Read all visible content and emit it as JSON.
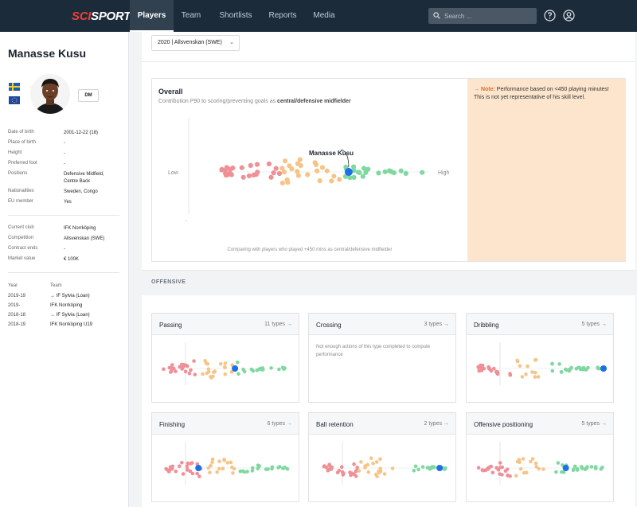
{
  "nav": {
    "logo_part1": "SCI",
    "logo_part2": "SPORTS",
    "items": [
      {
        "label": "Players",
        "active": true
      },
      {
        "label": "Team",
        "active": false
      },
      {
        "label": "Shortlists",
        "active": false
      },
      {
        "label": "Reports",
        "active": false
      },
      {
        "label": "Media",
        "active": false
      }
    ],
    "search_placeholder": "Search ...",
    "icons": [
      "search-icon",
      "help-icon",
      "user-icon"
    ]
  },
  "player": {
    "name": "Manasse Kusu",
    "flags": [
      "sweden-flag",
      "eu-flag"
    ],
    "position_badge": "DM",
    "personal": [
      {
        "label": "Date of birth",
        "value": "2001-12-22 (18)"
      },
      {
        "label": "Place of birth",
        "value": "-"
      },
      {
        "label": "Height",
        "value": "-"
      },
      {
        "label": "Preferred foot",
        "value": "-"
      },
      {
        "label": "Positions",
        "value": "Defensive Midfield, Centre Back"
      },
      {
        "label": "Nationalities",
        "value": "Sweden, Congo"
      },
      {
        "label": "EU member",
        "value": "Yes"
      }
    ],
    "club": [
      {
        "label": "Current club",
        "value": "IFK Norrköping"
      },
      {
        "label": "Competition",
        "value": "Allsvenskan (SWE)"
      },
      {
        "label": "Contract ends",
        "value": "-"
      },
      {
        "label": "Market value",
        "value": "€ 100K"
      }
    ],
    "history_headers": {
      "year": "Year",
      "team": "Team"
    },
    "history": [
      {
        "year": "2019-19",
        "team": "→ IF Sylvia (Loan)"
      },
      {
        "year": "2019-",
        "team": "IFK Norrköping"
      },
      {
        "year": "2018-18",
        "team": "→ IF Sylvia (Loan)"
      },
      {
        "year": "2018-19",
        "team": "IFK Norrköping U19"
      }
    ]
  },
  "season": {
    "selected": "2020 | Allsvenskan (SWE)"
  },
  "overall": {
    "title": "Overall",
    "subtitle_prefix": "Contribution P90 to scoring/preventing goals as",
    "subtitle_bold": "central/defensive midfielder",
    "player_label": "Manasse Kusu",
    "low_label": "Low",
    "high_label": "High",
    "axis_mark": "-",
    "comparison_note": "Comparing with players who played +450 mins as central/defensive midfielder",
    "note_label": "→ Note:",
    "note_text": "Performance based on <450 playing minutes! This is not yet representative of his skill level.",
    "player_percentile": 0.62
  },
  "offensive": {
    "section_title": "OFFENSIVE",
    "cards": [
      {
        "title": "Passing",
        "types": "11 types →",
        "player_percentile": 0.57,
        "message": ""
      },
      {
        "title": "Crossing",
        "types": "3 types →",
        "player_percentile": null,
        "message": "Not enough actions of this type completed to compute performance"
      },
      {
        "title": "Dribbling",
        "types": "5 types →",
        "player_percentile": 1.0,
        "message": ""
      },
      {
        "title": "Finishing",
        "types": "6 types →",
        "player_percentile": 0.28,
        "message": ""
      },
      {
        "title": "Ball retention",
        "types": "2 types →",
        "player_percentile": 0.95,
        "message": ""
      },
      {
        "title": "Offensive positioning",
        "types": "5 types →",
        "player_percentile": 0.7,
        "message": ""
      }
    ]
  },
  "colors": {
    "nav_bg": "#1c2b3a",
    "accent_blue": "#1f6fe5",
    "low_red": "#ef8f96",
    "mid_orange": "#f7c487",
    "high_green": "#7fd8a0",
    "note_bg": "#fde5cd",
    "note_label": "#e36a28"
  }
}
